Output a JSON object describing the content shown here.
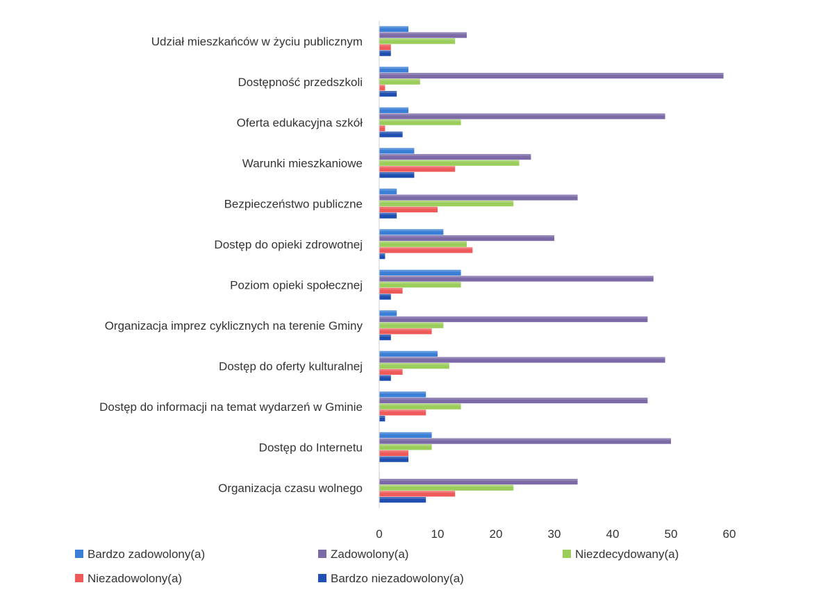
{
  "chart_data": {
    "type": "bar",
    "orientation": "horizontal",
    "title": "",
    "xlabel": "",
    "ylabel": "",
    "xlim": [
      0,
      60
    ],
    "x_ticks": [
      "0",
      "10",
      "20",
      "30",
      "40",
      "50",
      "60"
    ],
    "grid": false,
    "legend_position": "bottom",
    "categories": [
      "Udział mieszkańców w życiu publicznym",
      "Dostępność przedszkoli",
      "Oferta edukacyjna szkół",
      "Warunki mieszkaniowe",
      "Bezpieczeństwo publiczne",
      "Dostęp do opieki zdrowotnej",
      "Poziom opieki społecznej",
      "Organizacja imprez cyklicznych na terenie Gminy",
      "Dostęp do oferty kulturalnej",
      "Dostęp do informacji na temat wydarzeń w Gminie",
      "Dostęp do Internetu",
      "Organizacja czasu wolnego"
    ],
    "series": [
      {
        "name": "Bardzo zadowolony(a)",
        "color": "#3a7fd5",
        "values": [
          5,
          5,
          5,
          6,
          3,
          11,
          14,
          3,
          10,
          8,
          9,
          0
        ]
      },
      {
        "name": "Zadowolony(a)",
        "color": "#7b6aa6",
        "values": [
          15,
          59,
          49,
          26,
          34,
          30,
          47,
          46,
          49,
          46,
          50,
          34
        ]
      },
      {
        "name": "Niezdecydowany(a)",
        "color": "#9acd5a",
        "values": [
          13,
          7,
          14,
          24,
          23,
          15,
          14,
          11,
          12,
          14,
          9,
          23
        ]
      },
      {
        "name": "Niezadowolony(a)",
        "color": "#ee5a5a",
        "values": [
          2,
          1,
          1,
          13,
          10,
          16,
          4,
          9,
          4,
          8,
          5,
          13
        ]
      },
      {
        "name": "Bardzo niezadowolony(a)",
        "color": "#1f4fb0",
        "values": [
          2,
          3,
          4,
          6,
          3,
          1,
          2,
          2,
          2,
          1,
          5,
          8
        ]
      }
    ]
  }
}
